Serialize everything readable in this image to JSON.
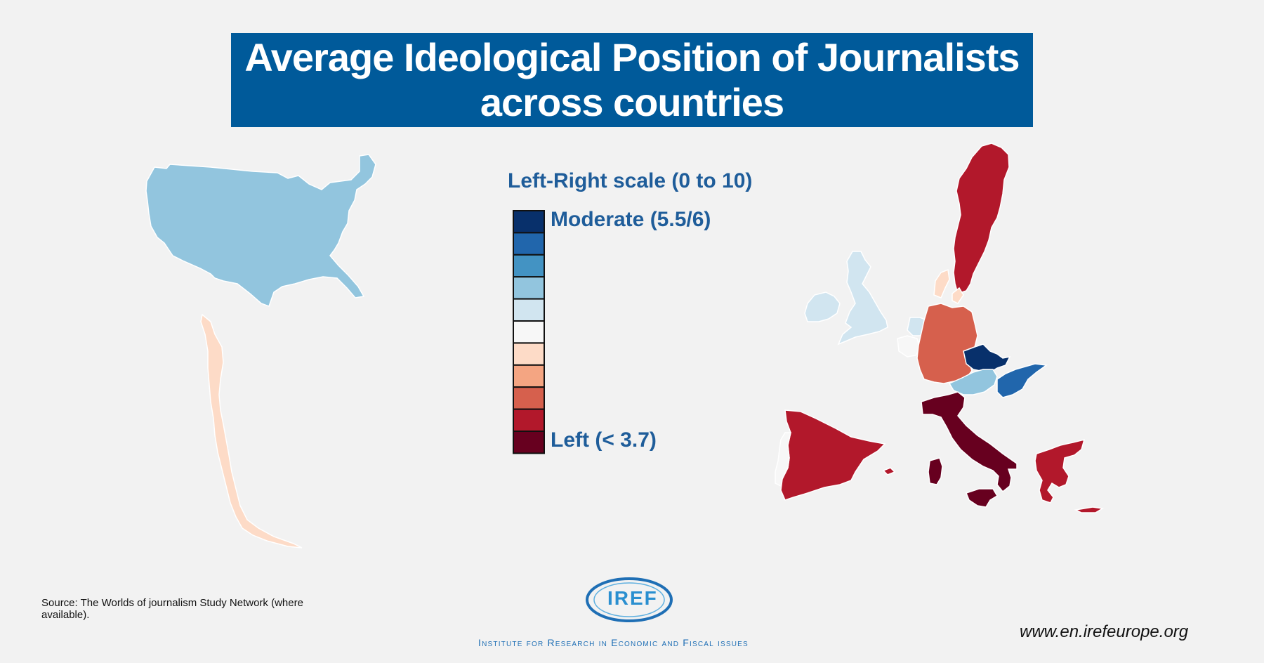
{
  "title": {
    "line1": "Average Ideological Position of  Journalists",
    "line2": "across countries"
  },
  "legend": {
    "title": "Left-Right scale (0 to 10)",
    "top_label": "Moderate (5.5/6)",
    "bottom_label": "Left (< 3.7)",
    "colors": [
      "#08306b",
      "#2166ac",
      "#4393c3",
      "#92c5de",
      "#d1e5f0",
      "#f7f7f7",
      "#fddbc7",
      "#f4a582",
      "#d6604d",
      "#b2182b",
      "#67001f"
    ]
  },
  "source": "Source: The Worlds of journalism Study Network (where available).",
  "logo": {
    "text": "IREF",
    "tagline": "Institute for Research in Economic and Fiscal issues"
  },
  "website": "www.en.irefeurope.org",
  "map_colors": {
    "usa": "#92c5de",
    "chile": "#fddbc7",
    "sweden": "#b2182b",
    "denmark": "#fddbc7",
    "uk": "#d1e5f0",
    "ireland": "#d1e5f0",
    "netherlands": "#d1e5f0",
    "belgium": "#f7f7f7",
    "germany": "#d6604d",
    "czechia": "#08306b",
    "austria": "#92c5de",
    "hungary": "#2166ac",
    "spain": "#b2182b",
    "portugal": "#f7f7f7",
    "italy": "#67001f",
    "greece": "#b2182b"
  }
}
